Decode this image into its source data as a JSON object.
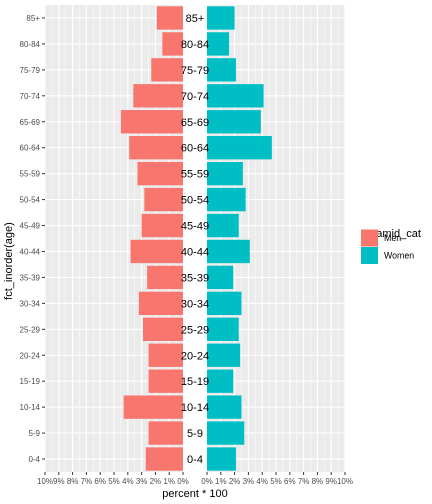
{
  "chart_data": {
    "type": "bar",
    "orientation": "horizontal",
    "layout": "population-pyramid",
    "ylabel": "fct_inorder(age)",
    "xlabel": "percent * 100",
    "categories": [
      "0-4",
      "5-9",
      "10-14",
      "15-19",
      "20-24",
      "25-29",
      "30-34",
      "35-39",
      "40-44",
      "45-49",
      "50-54",
      "55-59",
      "60-64",
      "65-69",
      "70-74",
      "75-79",
      "80-84",
      "85+"
    ],
    "center_labels": [
      "0-4",
      "5-9",
      "10-14",
      "15-19",
      "20-24",
      "25-29",
      "30-34",
      "35-39",
      "40-44",
      "45-49",
      "50-54",
      "55-59",
      "60-64",
      "65-69",
      "70-74",
      "75-79",
      "80-84",
      "85+"
    ],
    "x_ticks": [
      "10%",
      "9%",
      "8%",
      "7%",
      "6%",
      "5%",
      "4%",
      "3%",
      "2%",
      "1%",
      "0%",
      "0%",
      "1%",
      "2%",
      "3%",
      "4%",
      "5%",
      "6%",
      "7%",
      "8%",
      "9%",
      "10%"
    ],
    "xlim": [
      0,
      10
    ],
    "legend": {
      "title": "pyramid_cat",
      "position": "right",
      "entries": [
        {
          "label": "Men",
          "color": "#F8766D"
        },
        {
          "label": "Women",
          "color": "#00BFC4"
        }
      ]
    },
    "series": [
      {
        "name": "Men",
        "color": "#F8766D",
        "side": "left",
        "values": [
          2.7,
          2.5,
          4.3,
          2.5,
          2.5,
          2.9,
          3.2,
          2.6,
          3.8,
          3.0,
          2.8,
          3.3,
          3.9,
          4.5,
          3.6,
          2.3,
          1.5,
          1.9
        ]
      },
      {
        "name": "Women",
        "color": "#00BFC4",
        "side": "right",
        "values": [
          2.1,
          2.7,
          2.5,
          1.9,
          2.4,
          2.3,
          2.5,
          1.9,
          3.1,
          2.3,
          2.8,
          2.6,
          4.7,
          3.9,
          4.1,
          2.1,
          1.6,
          2.0
        ]
      }
    ],
    "grid": true,
    "panel_background": "#EBEBEB",
    "grid_color": "#FFFFFF"
  }
}
